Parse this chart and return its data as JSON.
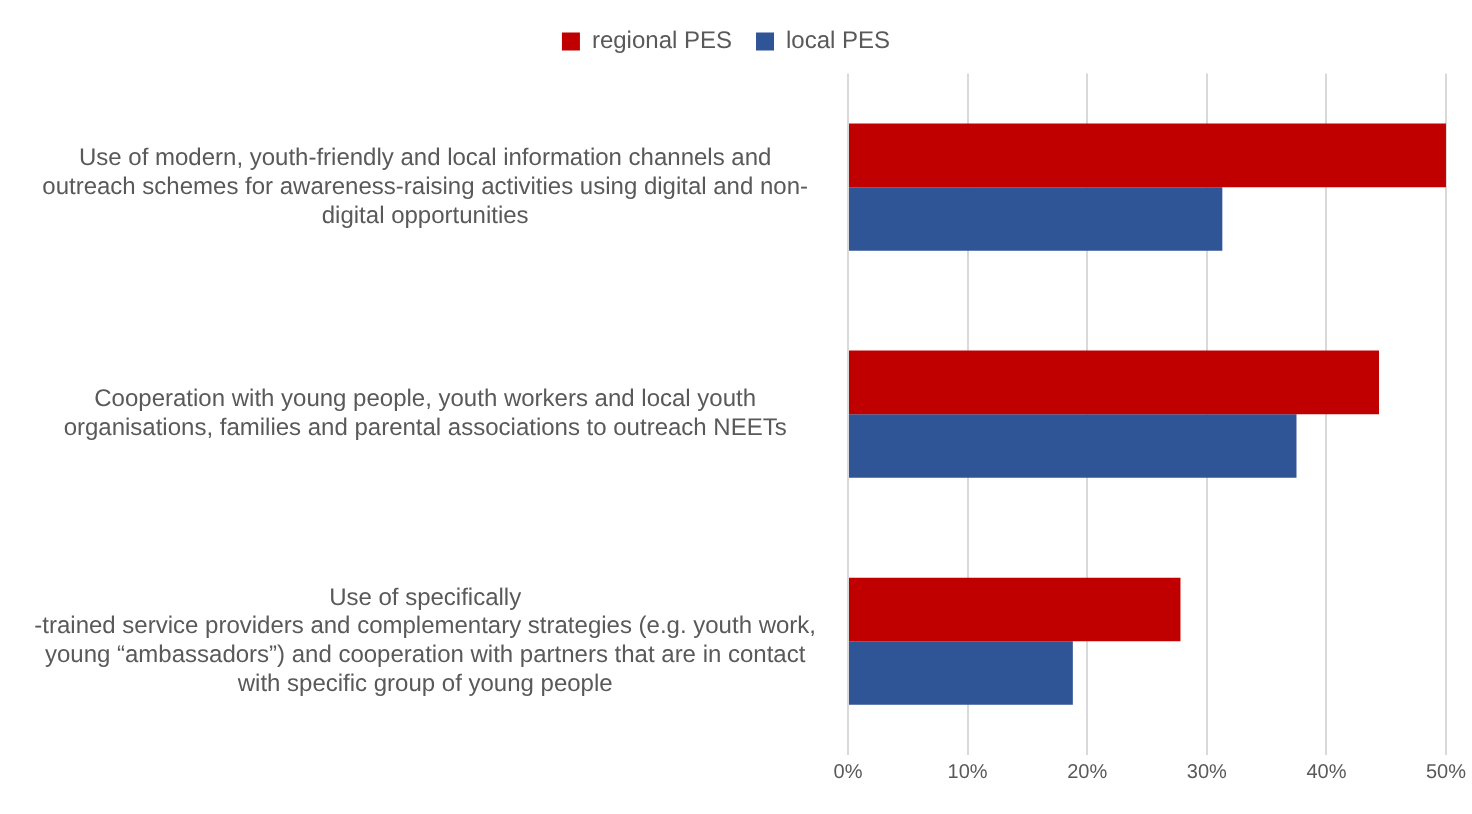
{
  "chart_data": {
    "type": "bar",
    "orientation": "horizontal",
    "categories": [
      "Use of modern, youth-friendly and local information channels and\noutreach schemes for awareness-raising activities using digital and non-\ndigital opportunities",
      "Cooperation with young people, youth workers and local youth\norganisations, families and parental associations to outreach NEETs",
      "Use of specifically\n-trained service providers and complementary strategies (e.g. youth work,\nyoung “ambassadors”) and cooperation with partners that are in contact\nwith specific group of young people"
    ],
    "series": [
      {
        "name": "regional PES",
        "color": "#c00000",
        "values": [
          50,
          44.4,
          27.8
        ]
      },
      {
        "name": "local PES",
        "color": "#2f5597",
        "values": [
          31.3,
          37.5,
          18.8
        ]
      }
    ],
    "xlim": [
      0,
      50
    ],
    "xticks": [
      {
        "value": 0,
        "label": "0%"
      },
      {
        "value": 10,
        "label": "10%"
      },
      {
        "value": 20,
        "label": "20%"
      },
      {
        "value": 30,
        "label": "30%"
      },
      {
        "value": 40,
        "label": "40%"
      },
      {
        "value": 50,
        "label": "50%"
      }
    ],
    "grid": "x",
    "legend": "top"
  }
}
